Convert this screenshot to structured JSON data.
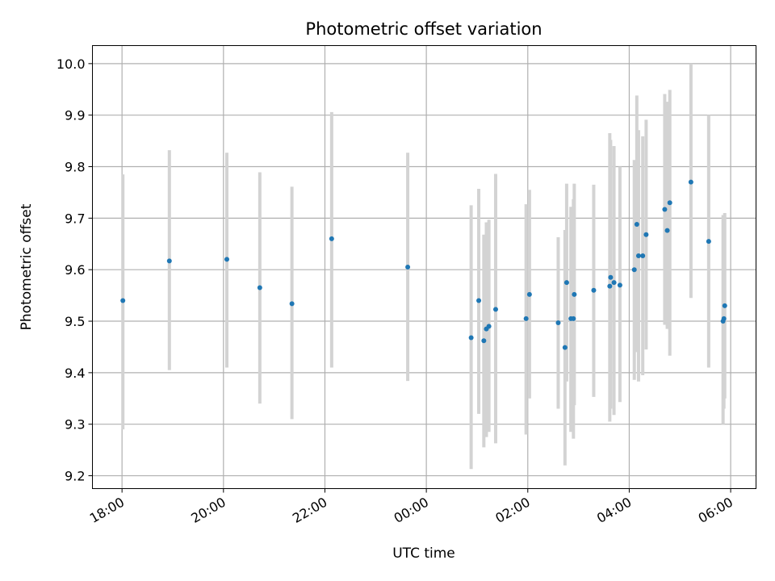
{
  "chart_data": {
    "type": "scatter",
    "title": "Photometric offset variation",
    "xlabel": "UTC time",
    "ylabel": "Photometric offset",
    "x_ticks": [
      "18:00",
      "20:00",
      "22:00",
      "00:00",
      "02:00",
      "04:00",
      "06:00"
    ],
    "y_ticks": [
      "9.2",
      "9.3",
      "9.4",
      "9.5",
      "9.6",
      "9.7",
      "9.8",
      "9.9",
      "10.0"
    ],
    "xlim": [
      "17:25",
      "06:30"
    ],
    "ylim": [
      9.175,
      10.035
    ],
    "grid": true,
    "colors": {
      "marker": "#1f77b4",
      "errorbar": "#d3d3d3",
      "grid": "#b0b0b0"
    },
    "points": [
      {
        "time": "18:01",
        "y": 9.54,
        "low": 9.29,
        "high": 9.785
      },
      {
        "time": "18:56",
        "y": 9.617,
        "low": 9.405,
        "high": 9.832
      },
      {
        "time": "20:04",
        "y": 9.62,
        "low": 9.41,
        "high": 9.827
      },
      {
        "time": "20:43",
        "y": 9.565,
        "low": 9.34,
        "high": 9.789
      },
      {
        "time": "21:21",
        "y": 9.534,
        "low": 9.31,
        "high": 9.761
      },
      {
        "time": "22:08",
        "y": 9.66,
        "low": 9.41,
        "high": 9.906
      },
      {
        "time": "23:38",
        "y": 9.605,
        "low": 9.384,
        "high": 9.827
      },
      {
        "time": "00:53",
        "y": 9.468,
        "low": 9.213,
        "high": 9.725
      },
      {
        "time": "01:02",
        "y": 9.54,
        "low": 9.32,
        "high": 9.757
      },
      {
        "time": "01:08",
        "y": 9.462,
        "low": 9.255,
        "high": 9.668
      },
      {
        "time": "01:11",
        "y": 9.485,
        "low": 9.275,
        "high": 9.692
      },
      {
        "time": "01:14",
        "y": 9.49,
        "low": 9.285,
        "high": 9.697
      },
      {
        "time": "01:22",
        "y": 9.523,
        "low": 9.263,
        "high": 9.786
      },
      {
        "time": "01:58",
        "y": 9.505,
        "low": 9.28,
        "high": 9.727
      },
      {
        "time": "02:02",
        "y": 9.552,
        "low": 9.35,
        "high": 9.755
      },
      {
        "time": "02:36",
        "y": 9.497,
        "low": 9.33,
        "high": 9.663
      },
      {
        "time": "02:44",
        "y": 9.449,
        "low": 9.22,
        "high": 9.677
      },
      {
        "time": "02:46",
        "y": 9.575,
        "low": 9.383,
        "high": 9.767
      },
      {
        "time": "02:51",
        "y": 9.505,
        "low": 9.285,
        "high": 9.722
      },
      {
        "time": "02:54",
        "y": 9.505,
        "low": 9.272,
        "high": 9.737
      },
      {
        "time": "02:55",
        "y": 9.552,
        "low": 9.337,
        "high": 9.767
      },
      {
        "time": "03:18",
        "y": 9.56,
        "low": 9.353,
        "high": 9.765
      },
      {
        "time": "03:37",
        "y": 9.568,
        "low": 9.305,
        "high": 9.865
      },
      {
        "time": "03:38",
        "y": 9.585,
        "low": 9.33,
        "high": 9.852
      },
      {
        "time": "03:42",
        "y": 9.575,
        "low": 9.318,
        "high": 9.84
      },
      {
        "time": "03:49",
        "y": 9.57,
        "low": 9.343,
        "high": 9.8
      },
      {
        "time": "04:06",
        "y": 9.6,
        "low": 9.386,
        "high": 9.813
      },
      {
        "time": "04:09",
        "y": 9.688,
        "low": 9.44,
        "high": 9.938
      },
      {
        "time": "04:11",
        "y": 9.627,
        "low": 9.383,
        "high": 9.871
      },
      {
        "time": "04:16",
        "y": 9.627,
        "low": 9.395,
        "high": 9.859
      },
      {
        "time": "04:20",
        "y": 9.668,
        "low": 9.445,
        "high": 9.891
      },
      {
        "time": "04:42",
        "y": 9.717,
        "low": 9.493,
        "high": 9.941
      },
      {
        "time": "04:45",
        "y": 9.676,
        "low": 9.485,
        "high": 9.926
      },
      {
        "time": "04:48",
        "y": 9.73,
        "low": 9.433,
        "high": 9.949
      },
      {
        "time": "05:13",
        "y": 9.77,
        "low": 9.545,
        "high": 10.0
      },
      {
        "time": "05:34",
        "y": 9.655,
        "low": 9.41,
        "high": 9.9
      },
      {
        "time": "05:51",
        "y": 9.5,
        "low": 9.3,
        "high": 9.706
      },
      {
        "time": "05:52",
        "y": 9.505,
        "low": 9.33,
        "high": 9.7
      },
      {
        "time": "05:53",
        "y": 9.53,
        "low": 9.35,
        "high": 9.71
      }
    ]
  }
}
